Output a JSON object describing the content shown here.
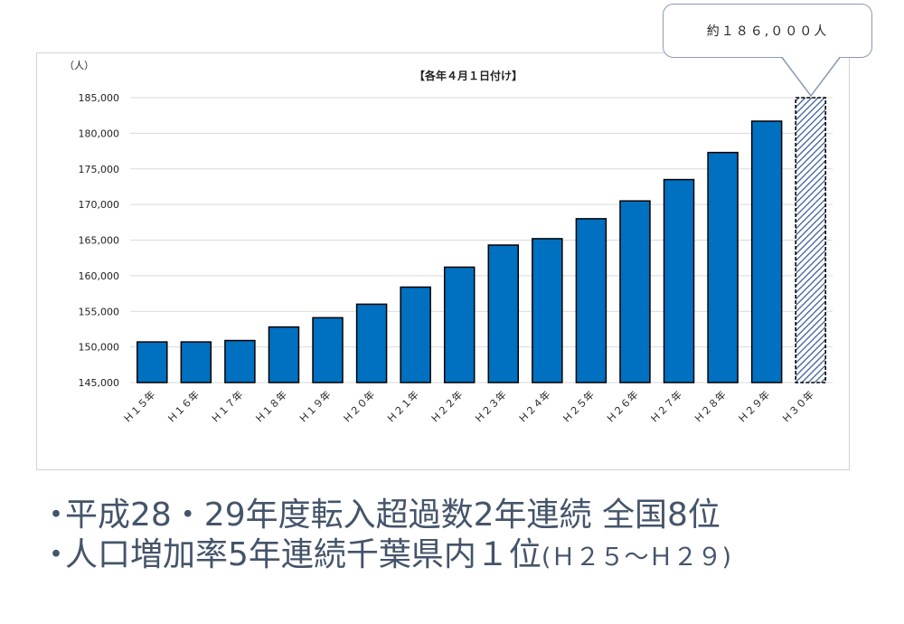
{
  "chart_data": {
    "type": "bar",
    "title": "【各年４月１日付け】",
    "unit_label": "（人）",
    "categories": [
      "Ｈ１５年",
      "Ｈ１６年",
      "Ｈ１７年",
      "Ｈ１８年",
      "Ｈ１９年",
      "Ｈ２０年",
      "Ｈ２１年",
      "Ｈ２２年",
      "Ｈ２３年",
      "Ｈ２４年",
      "Ｈ２５年",
      "Ｈ２６年",
      "Ｈ２７年",
      "Ｈ２８年",
      "Ｈ２９年",
      "Ｈ３０年"
    ],
    "values": [
      150700,
      150700,
      150900,
      152800,
      154100,
      156000,
      158400,
      161200,
      164300,
      165200,
      168000,
      170500,
      173500,
      177300,
      181700,
      186000
    ],
    "estimated_last": true,
    "ylim": [
      145000,
      185000
    ],
    "yticks": [
      145000,
      150000,
      155000,
      160000,
      165000,
      170000,
      175000,
      180000,
      185000
    ],
    "ytick_labels": [
      "145,000",
      "150,000",
      "155,000",
      "160,000",
      "165,000",
      "170,000",
      "175,000",
      "180,000",
      "185,000"
    ],
    "grid": true,
    "colors": {
      "bar": "#0070c0",
      "bar_edge": "#000000",
      "estimate_hatch": "#2f5597",
      "grid": "#d9d9d9"
    },
    "annotation": "約１８６,０００人"
  },
  "bullets": [
    {
      "dot": "・",
      "text": "平成28・29年度転入超過数2年連続 全国8位",
      "note": ""
    },
    {
      "dot": "・",
      "text": "人口増加率5年連続千葉県内１位",
      "note": "(Ｈ２５～Ｈ２９)"
    }
  ]
}
